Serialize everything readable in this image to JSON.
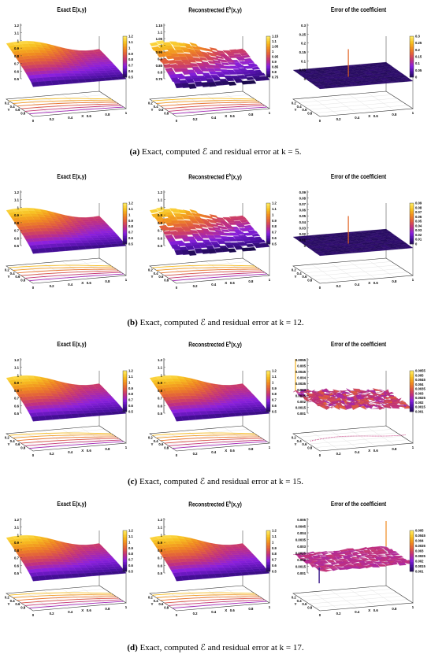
{
  "figure": {
    "rows": [
      {
        "caption": {
          "label": "(a)",
          "text": "Exact, computed ℰ and residual error at k = 5."
        },
        "panels": [
          {
            "title": "Exact E(x,y)",
            "kind": "surface",
            "zticks": [
              "1.2",
              "1.1",
              "1",
              "0.9",
              "0.8",
              "0.7",
              "0.6",
              "0.5"
            ],
            "cbticks": [
              "1.2",
              "1.1",
              "1",
              "0.9",
              "0.8",
              "0.7",
              "0.6",
              "0.5"
            ]
          },
          {
            "title": "Reconstrected E",
            "title_sup": "k",
            "title_tail": "(x,y)",
            "kind": "surface_noisy",
            "zticks": [
              "1.15",
              "1.1",
              "1.05",
              "1",
              "0.95",
              "0.9",
              "0.85",
              "0.8",
              "0.75"
            ],
            "cbticks": [
              "1.15",
              "1.1",
              "1.05",
              "1",
              "0.95",
              "0.9",
              "0.85",
              "0.8",
              "0.75"
            ]
          },
          {
            "title": "Error of the coefficient",
            "kind": "flat_error",
            "zticks": [
              "0.3",
              "0.25",
              "0.2",
              "0.15",
              "0.1",
              "0.05",
              "0"
            ],
            "cbticks": [
              "0.3",
              "0.25",
              "0.2",
              "0.15",
              "0.1",
              "0.05",
              "0"
            ]
          }
        ]
      },
      {
        "caption": {
          "label": "(b)",
          "text": "Exact, computed ℰ and residual error at k = 12."
        },
        "panels": [
          {
            "title": "Exact E(x,y)",
            "kind": "surface",
            "zticks": [
              "1.2",
              "1.1",
              "1",
              "0.9",
              "0.8",
              "0.7",
              "0.6",
              "0.5"
            ],
            "cbticks": [
              "1.2",
              "1.1",
              "1",
              "0.9",
              "0.8",
              "0.7",
              "0.6",
              "0.5"
            ]
          },
          {
            "title": "Reconstrected E",
            "title_sup": "k",
            "title_tail": "(x,y)",
            "kind": "surface_noisy",
            "zticks": [
              "1.2",
              "1.1",
              "1",
              "0.9",
              "0.8",
              "0.7",
              "0.6",
              "0.5"
            ],
            "cbticks": [
              "1.2",
              "1.1",
              "1",
              "0.9",
              "0.8",
              "0.7",
              "0.6",
              "0.5"
            ]
          },
          {
            "title": "Error of the coefficient",
            "kind": "flat_error",
            "zticks": [
              "0.09",
              "0.08",
              "0.07",
              "0.06",
              "0.05",
              "0.04",
              "0.03",
              "0.02",
              "0.01",
              "0"
            ],
            "cbticks": [
              "0.09",
              "0.08",
              "0.07",
              "0.06",
              "0.05",
              "0.04",
              "0.03",
              "0.02",
              "0.01",
              "0"
            ]
          }
        ]
      },
      {
        "caption": {
          "label": "(c)",
          "text": "Exact, computed ℰ and residual error at k = 15."
        },
        "panels": [
          {
            "title": "Exact E(x,y)",
            "kind": "surface",
            "zticks": [
              "1.2",
              "1.1",
              "1",
              "0.9",
              "0.8",
              "0.7",
              "0.6",
              "0.5"
            ],
            "cbticks": [
              "1.2",
              "1.1",
              "1",
              "0.9",
              "0.8",
              "0.7",
              "0.6",
              "0.5"
            ]
          },
          {
            "title": "Reconstrected E",
            "title_sup": "k",
            "title_tail": "(x,y)",
            "kind": "surface",
            "zticks": [
              "1.2",
              "1.1",
              "1",
              "0.9",
              "0.8",
              "0.7",
              "0.6",
              "0.5"
            ],
            "cbticks": [
              "1.2",
              "1.1",
              "1",
              "0.9",
              "0.8",
              "0.7",
              "0.6",
              "0.5"
            ]
          },
          {
            "title": "Error of the coefficient",
            "kind": "rough_error",
            "zticks": [
              "0.0055",
              "0.005",
              "0.0045",
              "0.004",
              "0.0035",
              "0.003",
              "0.0025",
              "0.002",
              "0.0015",
              "0.001"
            ],
            "cbticks": [
              "0.0055",
              "0.005",
              "0.0045",
              "0.004",
              "0.0035",
              "0.003",
              "0.0025",
              "0.002",
              "0.0015",
              "0.001"
            ]
          }
        ]
      },
      {
        "caption": {
          "label": "(d)",
          "text": "Exact, computed ℰ and residual error at k = 17."
        },
        "panels": [
          {
            "title": "Exact E(x,y)",
            "kind": "surface",
            "zticks": [
              "1.2",
              "1.1",
              "1",
              "0.9",
              "0.8",
              "0.7",
              "0.6",
              "0.5"
            ],
            "cbticks": [
              "1.2",
              "1.1",
              "1",
              "0.9",
              "0.8",
              "0.7",
              "0.6",
              "0.5"
            ]
          },
          {
            "title": "Reconstrected E",
            "title_sup": "k",
            "title_tail": "(x,y)",
            "kind": "surface",
            "zticks": [
              "1.2",
              "1.1",
              "1",
              "0.9",
              "0.8",
              "0.7",
              "0.6",
              "0.5"
            ],
            "cbticks": [
              "1.2",
              "1.1",
              "1",
              "0.9",
              "0.8",
              "0.7",
              "0.6",
              "0.5"
            ]
          },
          {
            "title": "Error of the coefficient",
            "kind": "pink_error",
            "zticks": [
              "0.005",
              "0.0045",
              "0.004",
              "0.0035",
              "0.003",
              "0.0025",
              "0.002",
              "0.0015",
              "0.001"
            ],
            "cbticks": [
              "0.005",
              "0.0045",
              "0.004",
              "0.0035",
              "0.003",
              "0.0025",
              "0.002",
              "0.0015",
              "0.001"
            ]
          }
        ]
      }
    ],
    "xticks": [
      "0",
      "0.2",
      "0.4",
      "0.6",
      "0.8",
      "1"
    ],
    "yticks": [
      "0.2",
      "0.4",
      "0.6",
      "0.8"
    ],
    "x_axis_label": "X",
    "y_axis_label": "Y",
    "colormap": [
      "#1a0a4a",
      "#4a10a0",
      "#8a20e0",
      "#c03080",
      "#e05a40",
      "#f08a20",
      "#f7c020",
      "#ffe860"
    ]
  }
}
